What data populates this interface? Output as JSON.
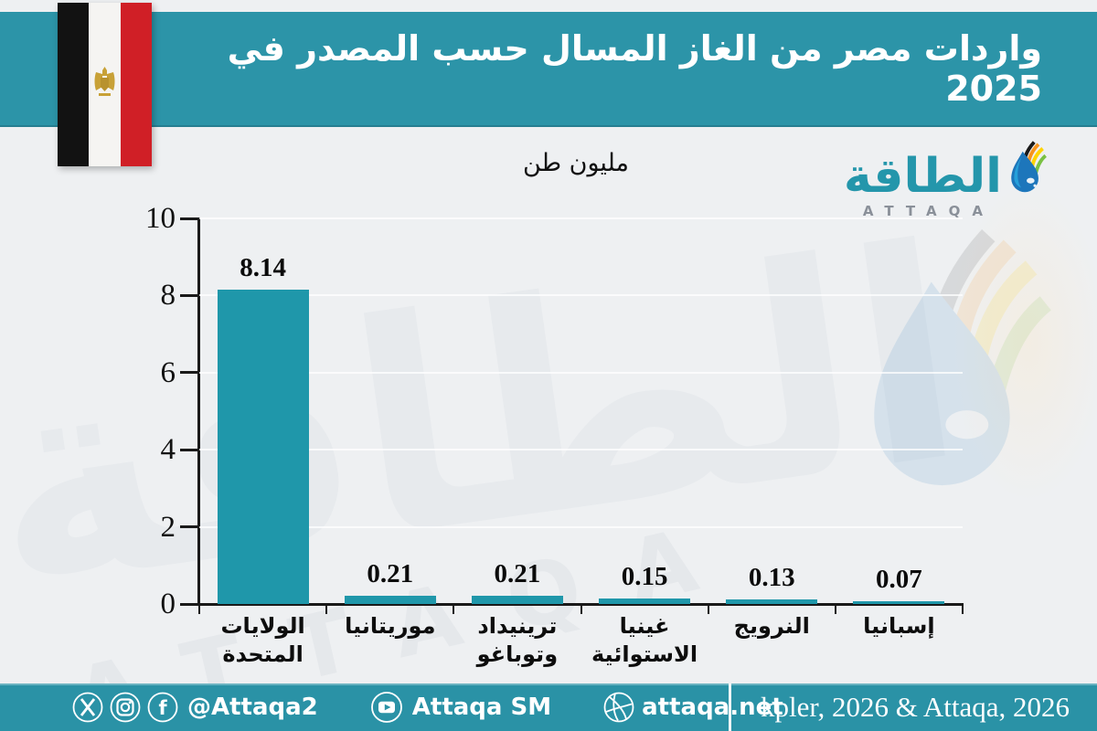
{
  "header": {
    "title": "واردات مصر من الغاز المسال حسب المصدر في 2025"
  },
  "logo": {
    "arabic": "الطاقة",
    "latin": "ATTAQA"
  },
  "chart_data": {
    "type": "bar",
    "title": "واردات مصر من الغاز المسال حسب المصدر في 2025",
    "unit_label": "مليون طن",
    "categories": [
      "الولايات المتحدة",
      "موريتانيا",
      "ترينيداد وتوباغو",
      "غينيا الاستوائية",
      "النرويج",
      "إسبانيا"
    ],
    "tick_labels": [
      "الولايات المتحدة",
      "موريتانيا",
      "ترينيداد\nوتوباغو",
      "غينيا\nالاستوائية",
      "النرويج",
      "إسبانيا"
    ],
    "values": [
      8.14,
      0.21,
      0.21,
      0.15,
      0.13,
      0.07
    ],
    "value_labels": [
      "8.14",
      "0.21",
      "0.21",
      "0.15",
      "0.13",
      "0.07"
    ],
    "ylim": [
      0,
      10
    ],
    "yticks": [
      0,
      2,
      4,
      6,
      8,
      10
    ],
    "bar_color": "#1f97aa",
    "grid": true,
    "legend": "none"
  },
  "footer": {
    "handle": "@Attaqa2",
    "youtube": "Attaqa SM",
    "website": "attaqa.net",
    "source": "kpler, 2026 & Attaqa, 2026"
  },
  "colors": {
    "band_teal": "#2c94a8",
    "footer_teal": "#2a92a6",
    "bar_teal": "#1f97aa",
    "background": "#eef0f2",
    "logo_teal": "#2496ab",
    "flag_red": "#d01f26",
    "flag_black": "#121212",
    "eagle_gold": "#c8a137"
  }
}
